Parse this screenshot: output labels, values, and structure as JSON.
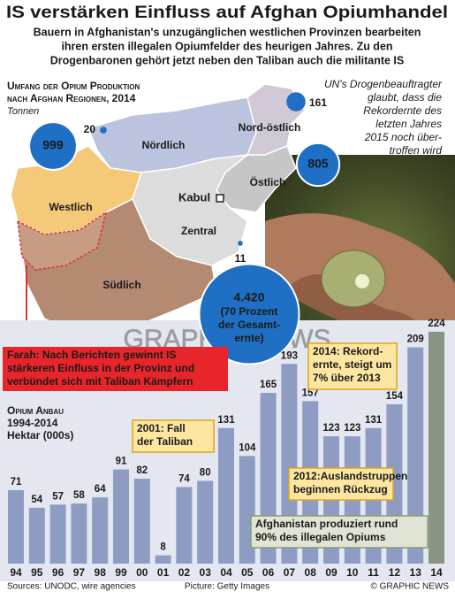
{
  "title": "IS verstärken Einfluss auf Afghan Opiumhandel",
  "subtitle": [
    "Bauern in Afghanistan's unzugänglichen westlichen Provinzen bearbeiten",
    "ihren ersten illegalen Opiumfelder des heurigen Jahres. Zu den",
    "Drogenbaronen gehört jetzt neben den Taliban auch die militante IS"
  ],
  "chart_data": [
    {
      "type": "bubble",
      "title": [
        "Umfang der Opium Produktion",
        "nach Afghan Regionen, 2014"
      ],
      "subtitle": "Tonnen",
      "categories": [
        "Westlich",
        "Nördlich",
        "Nord-östlich",
        "Östlich",
        "Südlich",
        "Zentral"
      ],
      "values": [
        999,
        20,
        161,
        805,
        4420,
        11
      ],
      "value_labels": [
        "999",
        "20",
        "161",
        "805",
        "4.420",
        "11"
      ],
      "color": "#1f6fc4",
      "capital": "Kabul",
      "share_note": [
        "(70 Prozent",
        "der Gesamt-",
        "ernte)"
      ],
      "side_note": [
        "UN's Drogenbeauftragter",
        "glaubt, dass die",
        "Rekordernte des",
        "letzten Jahres",
        "2015 noch über-",
        "troffen wird"
      ]
    },
    {
      "type": "bar",
      "title": "Opium Anbau",
      "subtitle": "1994-2014",
      "unit": "Hektar (000s)",
      "categories": [
        "94",
        "95",
        "96",
        "97",
        "98",
        "99",
        "00",
        "01",
        "02",
        "03",
        "04",
        "05",
        "06",
        "07",
        "08",
        "09",
        "10",
        "11",
        "12",
        "13",
        "14"
      ],
      "values": [
        71,
        54,
        57,
        58,
        64,
        91,
        82,
        8,
        74,
        80,
        131,
        104,
        165,
        193,
        157,
        123,
        123,
        131,
        154,
        209,
        224
      ],
      "colors": [
        "#8e9cc4",
        "#8e9cc4",
        "#8e9cc4",
        "#8e9cc4",
        "#8e9cc4",
        "#8e9cc4",
        "#8e9cc4",
        "#8e9cc4",
        "#8e9cc4",
        "#8e9cc4",
        "#8e9cc4",
        "#8e9cc4",
        "#8e9cc4",
        "#8e9cc4",
        "#8e9cc4",
        "#8e9cc4",
        "#8e9cc4",
        "#8e9cc4",
        "#8e9cc4",
        "#8e9cc4",
        "#879582"
      ],
      "annotations": [
        [
          "2001: Fall",
          "der Taliban"
        ],
        [
          "2012:Auslandstruppen",
          "beginnen Rückzug"
        ],
        [
          "2014: Rekord-",
          "ernte, steigt um",
          "7% über 2013"
        ],
        [
          "Afghanistan produziert rund",
          "90% des illegalen Opiums"
        ]
      ]
    }
  ],
  "farah_note": [
    "Farah: Nach Berichten gewinnt IS",
    "stärkeren Einfluss in der Provinz und",
    "verbündet sich mit Taliban Kämpfern"
  ],
  "watermark": "GRAPHIC NEWS",
  "sources": "Sources: UNODC, wire agencies",
  "picture_credit": "Picture: Getty Images",
  "copyright": "© GRAPHIC NEWS"
}
